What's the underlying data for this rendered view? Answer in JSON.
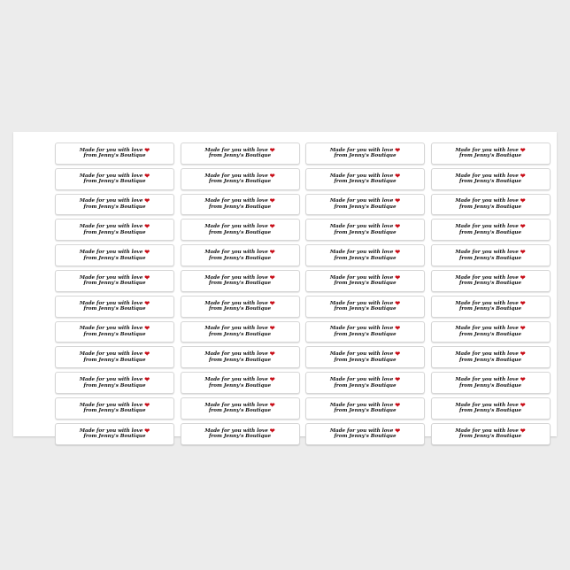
{
  "label": {
    "line1": "Made for you with love",
    "line2": "from Jenny's Boutique",
    "heart_color": "#c8101a",
    "heart_icon": "heart-icon"
  },
  "sheet": {
    "columns": 4,
    "rows": 12
  }
}
